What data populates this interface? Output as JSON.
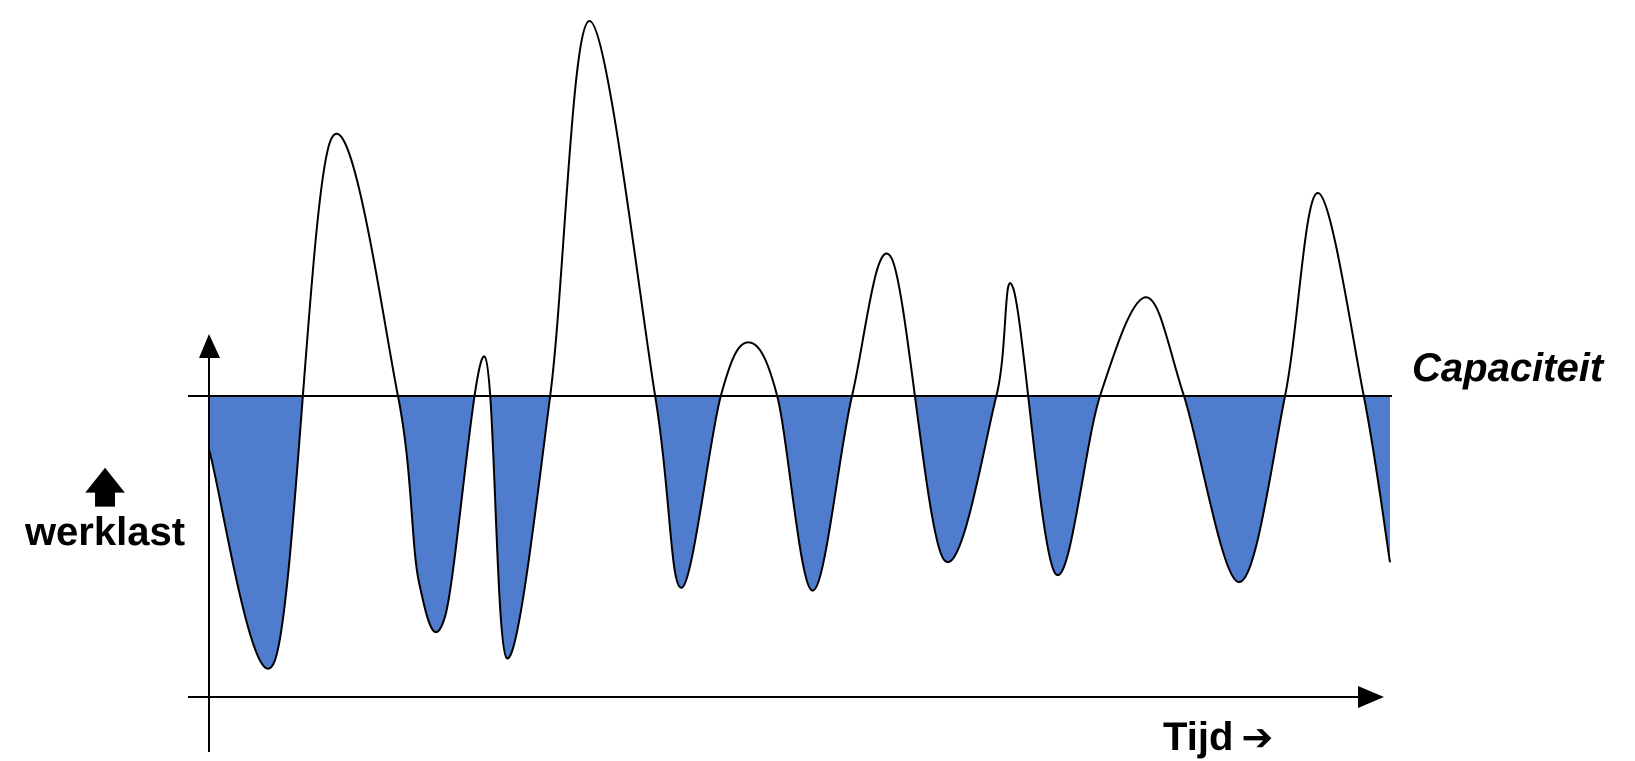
{
  "labels": {
    "capacity": "Capaciteit",
    "ylabel": "werklast",
    "ylabel_arrow": "🡅",
    "xlabel": "Tijd",
    "xlabel_arrow": "➔"
  },
  "icons": {
    "ylabel_arrow": "up-arrow-icon",
    "xlabel_arrow": "right-arrow-icon"
  },
  "colors": {
    "fill_below_capacity": "#4f7ccc",
    "line": "#000000",
    "background": "#ffffff"
  },
  "chart_data": {
    "type": "line",
    "xlabel": "Tijd",
    "ylabel": "werklast",
    "reference_line": {
      "name": "Capaciteit",
      "value": 0
    },
    "shading": "area below Capaciteit filled",
    "series": [
      {
        "values": [
          [
            0.0,
            -0.19
          ],
          [
            0.05,
            -0.94
          ],
          [
            0.093,
            0.91
          ],
          [
            0.144,
            0.0
          ],
          [
            0.16,
            -0.66
          ],
          [
            0.18,
            -0.78
          ],
          [
            0.21,
            0.14
          ],
          [
            0.227,
            -0.93
          ],
          [
            0.26,
            0.0
          ],
          [
            0.29,
            1.33
          ],
          [
            0.34,
            0.0
          ],
          [
            0.36,
            -0.68
          ],
          [
            0.39,
            0.0
          ],
          [
            0.411,
            0.19
          ],
          [
            0.433,
            0.0
          ],
          [
            0.46,
            -0.69
          ],
          [
            0.49,
            0.0
          ],
          [
            0.52,
            0.49
          ],
          [
            0.56,
            -0.58
          ],
          [
            0.6,
            0.0
          ],
          [
            0.613,
            0.38
          ],
          [
            0.645,
            -0.63
          ],
          [
            0.679,
            0.0
          ],
          [
            0.714,
            0.35
          ],
          [
            0.743,
            0.0
          ],
          [
            0.785,
            -0.66
          ],
          [
            0.82,
            0.0
          ],
          [
            0.845,
            0.72
          ],
          [
            0.88,
            0.0
          ],
          [
            0.9,
            -0.59
          ]
        ]
      }
    ]
  }
}
